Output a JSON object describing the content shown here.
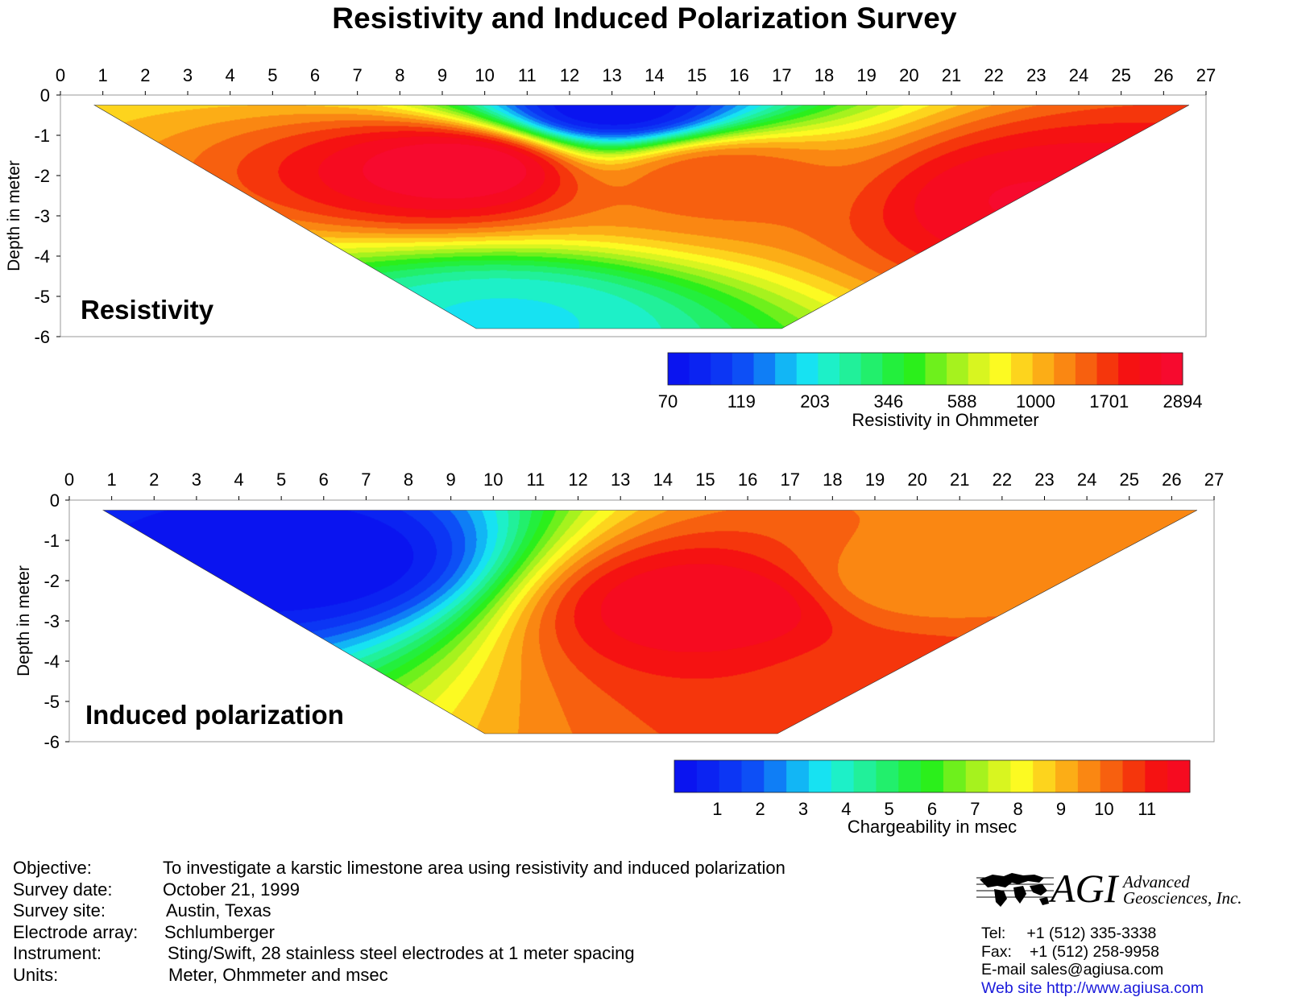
{
  "page": {
    "title": "Resistivity and Induced Polarization Survey"
  },
  "chart_data": [
    {
      "type": "heatmap",
      "panel_label": "Resistivity",
      "ylabel": "Depth in meter",
      "x_ticks": [
        "0",
        "1",
        "2",
        "3",
        "4",
        "5",
        "6",
        "7",
        "8",
        "9",
        "10",
        "11",
        "12",
        "13",
        "14",
        "15",
        "16",
        "17",
        "18",
        "19",
        "20",
        "21",
        "22",
        "23",
        "24",
        "25",
        "26",
        "27"
      ],
      "y_ticks": [
        "0",
        "-1",
        "-2",
        "-3",
        "-4",
        "-5",
        "-6"
      ],
      "xlim": [
        0,
        27
      ],
      "ylim": [
        -6,
        0
      ],
      "section_polygon": [
        [
          0.8,
          -0.25
        ],
        [
          26.6,
          -0.25
        ],
        [
          17.0,
          -5.8
        ],
        [
          9.8,
          -5.8
        ]
      ],
      "anomalies": [
        {
          "description": "highest resistivity",
          "x": 9.5,
          "y": -1.75,
          "value": 2894
        },
        {
          "description": "high resistivity",
          "x": 23.0,
          "y": -2.6,
          "value": 2500
        },
        {
          "description": "moderate",
          "x": 15.5,
          "y": -2.0,
          "value": 1500
        },
        {
          "description": "low near surface",
          "x": 13.0,
          "y": -0.3,
          "value": 70
        },
        {
          "description": "low at depth",
          "x": 10.5,
          "y": -5.6,
          "value": 203
        }
      ],
      "colorbar": {
        "title": "Resistivity in Ohmmeter",
        "labels": [
          "70",
          "119",
          "203",
          "346",
          "588",
          "1000",
          "1701",
          "2894"
        ],
        "colors": [
          "#0a14f0",
          "#0b23f2",
          "#0c36f4",
          "#0d4ff6",
          "#0f7ef6",
          "#12b6f5",
          "#17e2f2",
          "#1df0c8",
          "#21f09a",
          "#22ef6c",
          "#23ef3d",
          "#2bef1b",
          "#6ef01c",
          "#a6f21e",
          "#d8f520",
          "#fcfa22",
          "#fdd41d",
          "#fcad16",
          "#fa8712",
          "#f7600f",
          "#f5360c",
          "#f51212",
          "#f60b20",
          "#f70a2e"
        ]
      }
    },
    {
      "type": "heatmap",
      "panel_label": "Induced polarization",
      "ylabel": "Depth in meter",
      "x_ticks": [
        "0",
        "1",
        "2",
        "3",
        "4",
        "5",
        "6",
        "7",
        "8",
        "9",
        "10",
        "11",
        "12",
        "13",
        "14",
        "15",
        "16",
        "17",
        "18",
        "19",
        "20",
        "21",
        "22",
        "23",
        "24",
        "25",
        "26",
        "27"
      ],
      "y_ticks": [
        "0",
        "-1",
        "-2",
        "-3",
        "-4",
        "-5",
        "-6"
      ],
      "xlim": [
        0,
        27
      ],
      "ylim": [
        -6,
        0
      ],
      "section_polygon": [
        [
          0.8,
          -0.25
        ],
        [
          26.6,
          -0.25
        ],
        [
          16.7,
          -5.8
        ],
        [
          9.8,
          -5.8
        ]
      ],
      "anomalies": [
        {
          "description": "high chargeability",
          "x": 15.2,
          "y": -2.6,
          "value": 11
        },
        {
          "description": "high chargeability",
          "x": 19.5,
          "y": -4.5,
          "value": 10
        },
        {
          "description": "moderate",
          "x": 20.0,
          "y": -2.0,
          "value": 9
        },
        {
          "description": "low chargeability",
          "x": 5.5,
          "y": -1.5,
          "value": 1
        }
      ],
      "colorbar": {
        "title": "Chargeability in msec",
        "labels": [
          "1",
          "2",
          "3",
          "4",
          "5",
          "6",
          "7",
          "8",
          "9",
          "10",
          "11"
        ],
        "colors": [
          "#0a14f0",
          "#0b23f2",
          "#0c36f4",
          "#0d4ff6",
          "#0f7ef6",
          "#12b6f5",
          "#17e2f2",
          "#1df0c8",
          "#21f09a",
          "#22ef6c",
          "#23ef3d",
          "#2bef1b",
          "#6ef01c",
          "#a6f21e",
          "#d8f520",
          "#fcfa22",
          "#fdd41d",
          "#fcad16",
          "#fa8712",
          "#f7600f",
          "#f5360c",
          "#f51212",
          "#f60b20"
        ]
      }
    }
  ],
  "info": [
    {
      "key": "Objective:",
      "value": "To investigate a karstic limestone area using resistivity and induced polarization"
    },
    {
      "key": "Survey date:",
      "value": "October 21, 1999"
    },
    {
      "key": "Survey site:",
      "value": "Austin, Texas"
    },
    {
      "key": "Electrode array:",
      "value": "Schlumberger"
    },
    {
      "key": "Instrument:",
      "value": "Sting/Swift, 28 stainless steel electrodes at 1 meter spacing"
    },
    {
      "key": "Units:",
      "value": "Meter, Ohmmeter and msec"
    }
  ],
  "logo": {
    "brand": "AGI",
    "company_line1": "Advanced",
    "company_line2": "Geosciences, Inc."
  },
  "contact": {
    "tel_label": "Tel:",
    "tel": "+1 (512) 335-3338",
    "fax_label": "Fax:",
    "fax": "+1 (512) 258-9958",
    "email_label": "E-mail",
    "email": "sales@agiusa.com",
    "web_label": "Web site",
    "web": "http://www.agiusa.com"
  }
}
